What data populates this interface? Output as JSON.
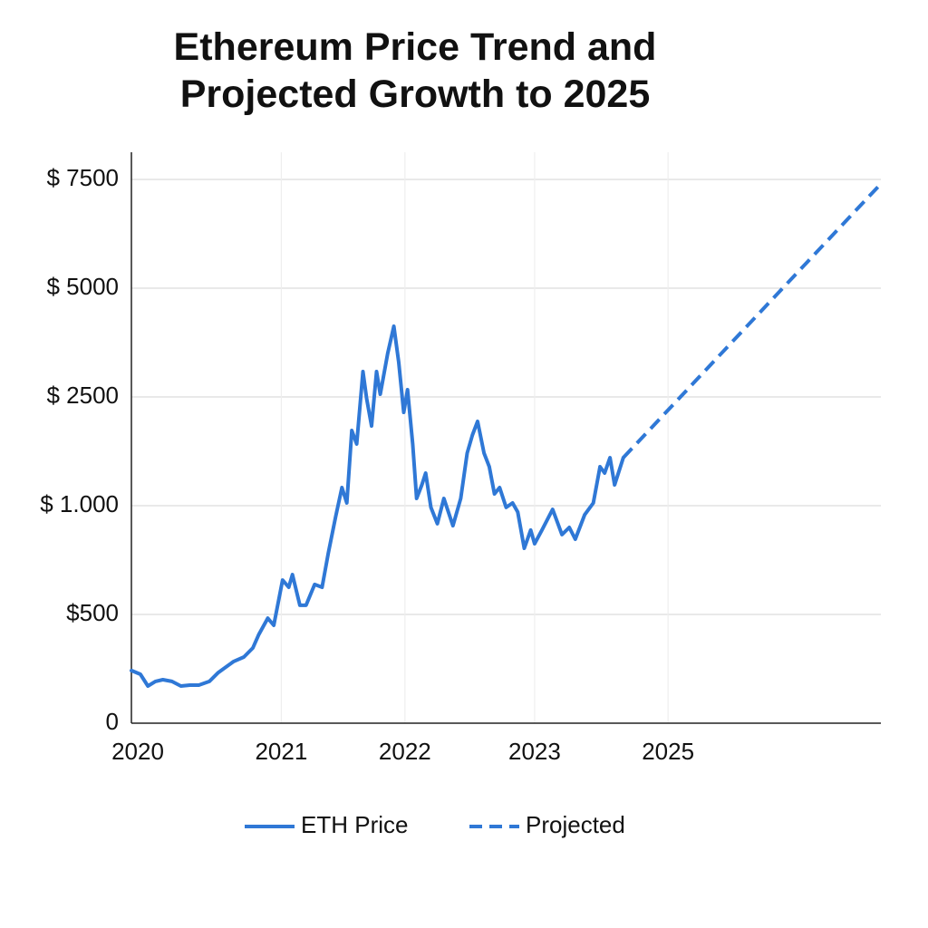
{
  "chart_data": {
    "type": "line",
    "title": "Ethereum Price Trend and Projected Growth to 2025",
    "series": [
      {
        "name": "ETH Price",
        "color": "#2f78d6",
        "dash": false,
        "x": [
          2020,
          2020.06,
          2020.11,
          2020.16,
          2020.21,
          2020.27,
          2020.33,
          2020.39,
          2020.45,
          2020.52,
          2020.58,
          2020.64,
          2020.68,
          2020.75,
          2020.81,
          2020.85,
          2020.91,
          2020.95,
          2021.01,
          2021.06,
          2021.09,
          2021.15,
          2021.2,
          2021.27,
          2021.33,
          2021.38,
          2021.44,
          2021.49,
          2021.53,
          2021.57,
          2021.61,
          2021.66,
          2021.69,
          2021.73,
          2021.77,
          2021.8,
          2021.86,
          2021.91,
          2021.95,
          2021.99,
          2022.02,
          2022.06,
          2022.09,
          2022.13,
          2022.16,
          2022.2,
          2022.25,
          2022.3,
          2022.37,
          2022.43,
          2022.48,
          2022.52,
          2022.56,
          2022.61,
          2022.65,
          2022.69,
          2022.73,
          2022.78,
          2022.83,
          2022.87,
          2022.92,
          2022.97,
          2023,
          2023.11,
          2023.27,
          2023.41,
          2023.52,
          2023.61,
          2023.75,
          2023.88,
          2023.98,
          2024.05,
          2024.13,
          2024.2,
          2024.33
        ],
        "values": [
          242,
          225,
          171,
          192,
          200,
          192,
          171,
          175,
          175,
          192,
          233,
          263,
          283,
          304,
          346,
          408,
          483,
          450,
          658,
          625,
          683,
          542,
          542,
          638,
          625,
          783,
          950,
          1250,
          1038,
          2038,
          1850,
          3083,
          2475,
          2100,
          3083,
          2563,
          3500,
          4125,
          3292,
          2288,
          2667,
          1850,
          1100,
          1288,
          1450,
          992,
          917,
          1100,
          908,
          1100,
          1725,
          1975,
          2163,
          1725,
          1538,
          1163,
          1250,
          992,
          1038,
          971,
          804,
          888,
          825,
          888,
          983,
          867,
          900,
          846,
          958,
          1038,
          1538,
          1450,
          1663,
          1288,
          1663
        ]
      },
      {
        "name": "Projected",
        "color": "#2f78d6",
        "dash": true,
        "x": [
          2024.33,
          2028
        ],
        "values": [
          1663,
          7400
        ]
      }
    ],
    "xlim": [
      2020,
      2028
    ],
    "xticks": [
      2020,
      2021,
      2022,
      2023,
      2025
    ],
    "ylim": [
      0,
      7500
    ],
    "yticks": [
      0,
      {
        "value": 500,
        "label": "$500"
      },
      {
        "value": 1000,
        "label": "$ 1.000"
      },
      {
        "value": 2500,
        "label": "$ 2500"
      },
      {
        "value": 5000,
        "label": "$ 5000"
      },
      {
        "value": 7500,
        "label": "$ 7500"
      }
    ],
    "grid": true
  }
}
